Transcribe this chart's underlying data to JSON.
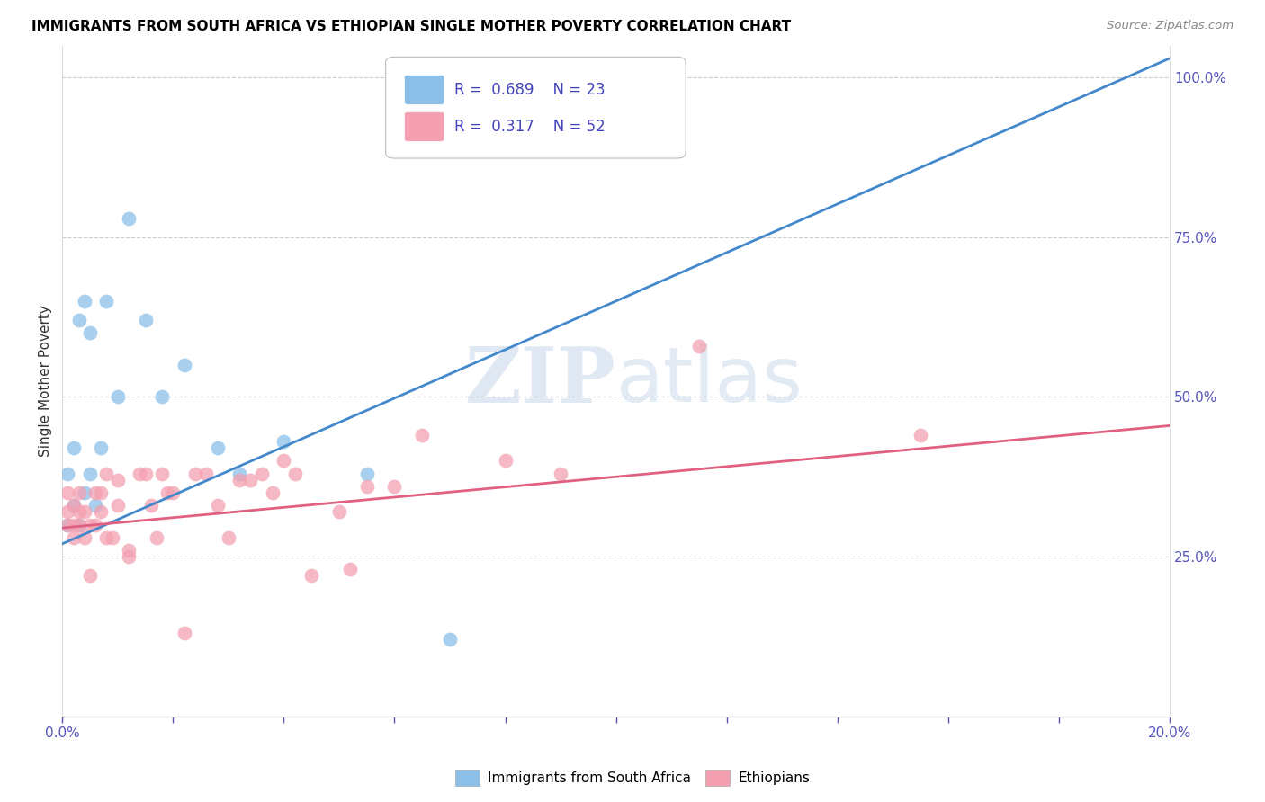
{
  "title": "IMMIGRANTS FROM SOUTH AFRICA VS ETHIOPIAN SINGLE MOTHER POVERTY CORRELATION CHART",
  "source": "Source: ZipAtlas.com",
  "ylabel": "Single Mother Poverty",
  "xlim": [
    0.0,
    0.2
  ],
  "ylim": [
    0.0,
    1.05
  ],
  "x_ticks": [
    0.0,
    0.02,
    0.04,
    0.06,
    0.08,
    0.1,
    0.12,
    0.14,
    0.16,
    0.18,
    0.2
  ],
  "y_ticks_right": [
    0.25,
    0.5,
    0.75,
    1.0
  ],
  "y_tick_labels_right": [
    "25.0%",
    "50.0%",
    "75.0%",
    "100.0%"
  ],
  "blue_color": "#8bbfe8",
  "pink_color": "#f4a0b0",
  "blue_line_color": "#4488cc",
  "pink_line_color": "#e06080",
  "R_blue": 0.689,
  "N_blue": 23,
  "R_pink": 0.317,
  "N_pink": 52,
  "legend_label_blue": "Immigrants from South Africa",
  "legend_label_pink": "Ethiopians",
  "blue_line_x0": 0.0,
  "blue_line_y0": 0.27,
  "blue_line_x1": 0.2,
  "blue_line_y1": 1.03,
  "pink_line_x0": 0.0,
  "pink_line_y0": 0.295,
  "pink_line_x1": 0.2,
  "pink_line_y1": 0.455,
  "blue_x": [
    0.001,
    0.001,
    0.002,
    0.002,
    0.003,
    0.003,
    0.004,
    0.004,
    0.005,
    0.005,
    0.006,
    0.007,
    0.008,
    0.01,
    0.012,
    0.015,
    0.018,
    0.022,
    0.028,
    0.032,
    0.04,
    0.055,
    0.07
  ],
  "blue_y": [
    0.3,
    0.38,
    0.33,
    0.42,
    0.3,
    0.62,
    0.35,
    0.65,
    0.6,
    0.38,
    0.33,
    0.42,
    0.65,
    0.5,
    0.78,
    0.62,
    0.5,
    0.55,
    0.42,
    0.38,
    0.43,
    0.38,
    0.12
  ],
  "pink_x": [
    0.001,
    0.001,
    0.001,
    0.002,
    0.002,
    0.002,
    0.003,
    0.003,
    0.003,
    0.004,
    0.004,
    0.005,
    0.005,
    0.006,
    0.006,
    0.007,
    0.007,
    0.008,
    0.008,
    0.009,
    0.01,
    0.01,
    0.012,
    0.012,
    0.014,
    0.015,
    0.016,
    0.017,
    0.018,
    0.019,
    0.02,
    0.022,
    0.024,
    0.026,
    0.028,
    0.03,
    0.032,
    0.034,
    0.036,
    0.038,
    0.04,
    0.042,
    0.045,
    0.05,
    0.052,
    0.055,
    0.06,
    0.065,
    0.08,
    0.09,
    0.115,
    0.155
  ],
  "pink_y": [
    0.3,
    0.32,
    0.35,
    0.28,
    0.3,
    0.33,
    0.3,
    0.32,
    0.35,
    0.28,
    0.32,
    0.22,
    0.3,
    0.3,
    0.35,
    0.35,
    0.32,
    0.28,
    0.38,
    0.28,
    0.33,
    0.37,
    0.26,
    0.25,
    0.38,
    0.38,
    0.33,
    0.28,
    0.38,
    0.35,
    0.35,
    0.13,
    0.38,
    0.38,
    0.33,
    0.28,
    0.37,
    0.37,
    0.38,
    0.35,
    0.4,
    0.38,
    0.22,
    0.32,
    0.23,
    0.36,
    0.36,
    0.44,
    0.4,
    0.38,
    0.58,
    0.44
  ]
}
